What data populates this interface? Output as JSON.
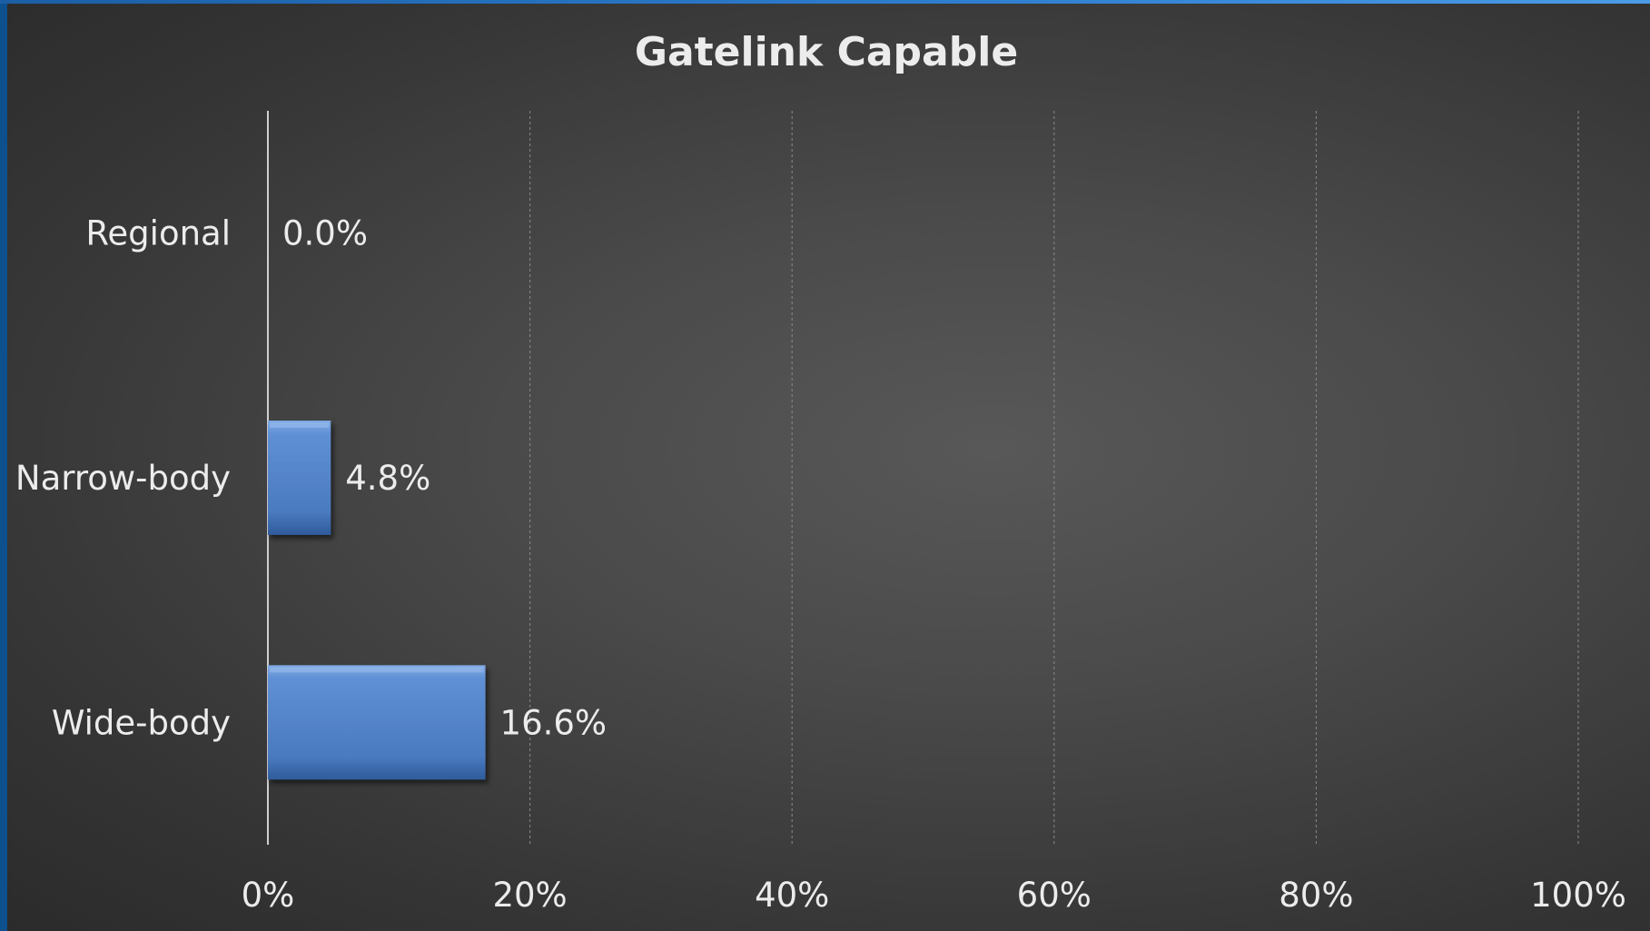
{
  "chart_data": {
    "type": "bar",
    "orientation": "horizontal",
    "title": "Gatelink Capable",
    "categories": [
      "Regional",
      "Narrow-body",
      "Wide-body"
    ],
    "values": [
      0.0,
      4.8,
      16.6
    ],
    "data_labels": [
      "0.0%",
      "4.8%",
      "16.6%"
    ],
    "xlim": [
      0,
      100
    ],
    "x_ticks": [
      0,
      20,
      40,
      60,
      80,
      100
    ],
    "x_tick_labels": [
      "0%",
      "20%",
      "40%",
      "60%",
      "80%",
      "100%"
    ],
    "xlabel": "",
    "ylabel": "",
    "grid": "vertical dashed",
    "legend": "none",
    "colors": {
      "bar": "#4f81c7",
      "bar_highlight": "#7fa9e3",
      "bar_shadow": "#2e5b9a",
      "text": "#ececec",
      "grid": "#8a8a8a",
      "axis": "#cfcfcf"
    }
  }
}
